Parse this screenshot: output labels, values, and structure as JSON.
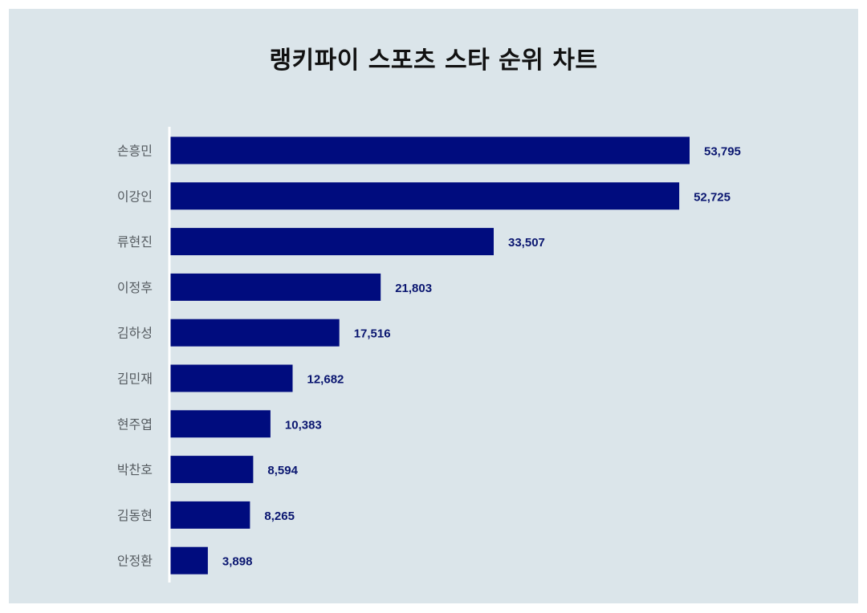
{
  "title": "랭키파이 스포츠 스타 순위 차트",
  "colors": {
    "background": "#dbe5ea",
    "bar": "#000c7e",
    "value_text": "#0a1670",
    "axis": "#ffffff"
  },
  "chart_data": {
    "type": "bar",
    "orientation": "horizontal",
    "title": "랭키파이 스포츠 스타 순위 차트",
    "xlabel": "",
    "ylabel": "",
    "grid": false,
    "legend": "none",
    "xlim": [
      0,
      60000
    ],
    "categories": [
      "손흥민",
      "이강인",
      "류현진",
      "이정후",
      "김하성",
      "김민재",
      "현주엽",
      "박찬호",
      "김동현",
      "안정환"
    ],
    "values": [
      53795,
      52725,
      33507,
      21803,
      17516,
      12682,
      10383,
      8594,
      8265,
      3898
    ],
    "value_labels": [
      "53,795",
      "52,725",
      "33,507",
      "21,803",
      "17,516",
      "12,682",
      "10,383",
      "8,594",
      "8,265",
      "3,898"
    ]
  }
}
